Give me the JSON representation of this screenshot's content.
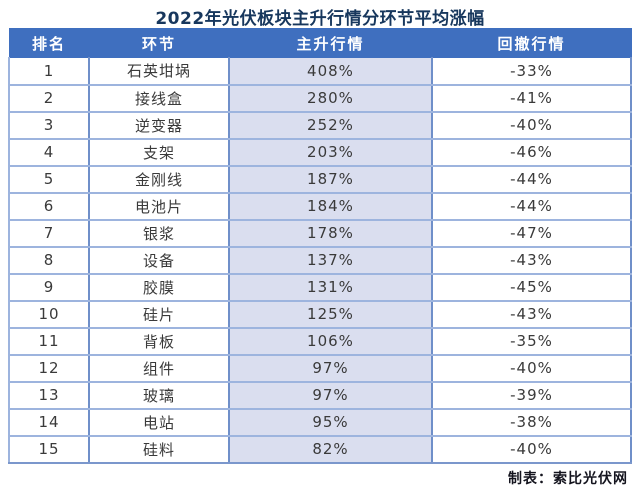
{
  "title": "2022年光伏板块主升行情分环节平均涨幅",
  "footer_credit": "制表：索比光伏网",
  "colors": {
    "header_bg": "#3F6FBF",
    "rise_column_bg": "#DADEEF",
    "outer_border": "#7b97cc",
    "inner_border": "#9db4de",
    "title_color": "#17375D",
    "body_text": "#3a3a3a"
  },
  "chart_data": {
    "type": "table",
    "title": "2022年光伏板块主升行情分环节平均涨幅",
    "columns": [
      "排名",
      "环节",
      "主升行情",
      "回撤行情"
    ],
    "rows": [
      {
        "rank": "1",
        "segment": "石英坩埚",
        "rise": "408%",
        "drawdown": "-33%"
      },
      {
        "rank": "2",
        "segment": "接线盒",
        "rise": "280%",
        "drawdown": "-41%"
      },
      {
        "rank": "3",
        "segment": "逆变器",
        "rise": "252%",
        "drawdown": "-40%"
      },
      {
        "rank": "4",
        "segment": "支架",
        "rise": "203%",
        "drawdown": "-46%"
      },
      {
        "rank": "5",
        "segment": "金刚线",
        "rise": "187%",
        "drawdown": "-44%"
      },
      {
        "rank": "6",
        "segment": "电池片",
        "rise": "184%",
        "drawdown": "-44%"
      },
      {
        "rank": "7",
        "segment": "银浆",
        "rise": "178%",
        "drawdown": "-47%"
      },
      {
        "rank": "8",
        "segment": "设备",
        "rise": "137%",
        "drawdown": "-43%"
      },
      {
        "rank": "9",
        "segment": "胶膜",
        "rise": "131%",
        "drawdown": "-45%"
      },
      {
        "rank": "10",
        "segment": "硅片",
        "rise": "125%",
        "drawdown": "-43%"
      },
      {
        "rank": "11",
        "segment": "背板",
        "rise": "106%",
        "drawdown": "-35%"
      },
      {
        "rank": "12",
        "segment": "组件",
        "rise": "97%",
        "drawdown": "-40%"
      },
      {
        "rank": "13",
        "segment": "玻璃",
        "rise": "97%",
        "drawdown": "-39%"
      },
      {
        "rank": "14",
        "segment": "电站",
        "rise": "95%",
        "drawdown": "-38%"
      },
      {
        "rank": "15",
        "segment": "硅料",
        "rise": "82%",
        "drawdown": "-40%"
      }
    ]
  }
}
